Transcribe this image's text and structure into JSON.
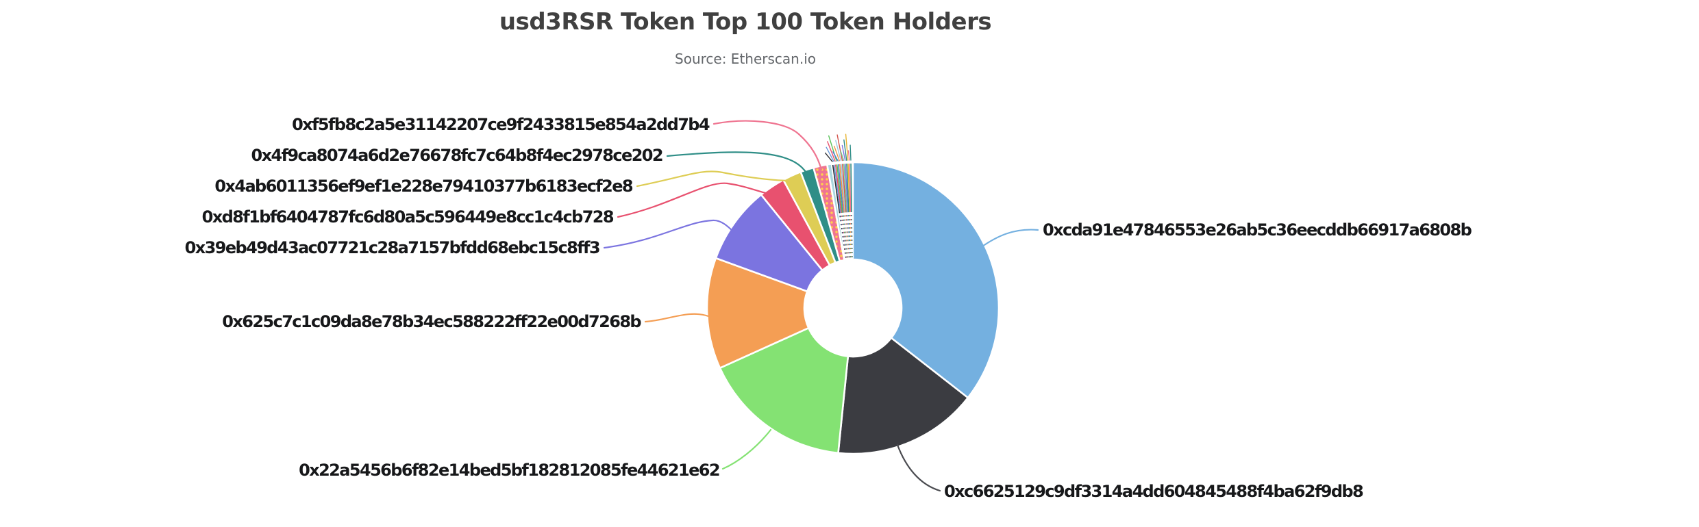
{
  "title": "usd3RSR Token Top 100 Token Holders",
  "subtitle": "Source: Etherscan.io",
  "chart_data": {
    "type": "pie",
    "donut": true,
    "title": "usd3RSR Token Top 100 Token Holders",
    "source": "Etherscan.io",
    "legend_position": "none",
    "unit": "percent share of top-100 token holdings",
    "start_angle_deg": 0,
    "direction": "clockwise",
    "series": [
      {
        "address": "0xcda91e47846553e26ab5c36eecddb66917a6808b",
        "share_pct": 35.6,
        "deg": 128.0,
        "color": "#74b0e0"
      },
      {
        "address": "0xc6625129c9df3314a4dd604845488f4ba62f9db8",
        "share_pct": 16.1,
        "deg": 57.8,
        "color": "#3b3c41"
      },
      {
        "address": "0x22a5456b6f82e14bed5bf182812085fe44621e62",
        "share_pct": 16.6,
        "deg": 59.9,
        "color": "#84e273"
      },
      {
        "address": "0x625c7c1c09da8e78b34ec588222ff22e00d7268b",
        "share_pct": 12.3,
        "deg": 44.3,
        "color": "#f49e54"
      },
      {
        "address": "0x39eb49d43ac07721c28a7157bfdd68ebc15c8ff3",
        "share_pct": 8.6,
        "deg": 31.0,
        "color": "#7b74e0"
      },
      {
        "address": "0xd8f1bf6404787fc6d80a5c596449e8cc1c4cb728",
        "share_pct": 2.9,
        "deg": 10.5,
        "color": "#e8516f"
      },
      {
        "address": "0x4ab6011356ef9ef1e228e79410377b6183ecf2e8",
        "share_pct": 2.1,
        "deg": 7.5,
        "color": "#decd55"
      },
      {
        "address": "0x4f9ca8074a6d2e76678fc7c64b8f4ec2978ce202",
        "share_pct": 1.5,
        "deg": 5.3,
        "color": "#2f8e87"
      },
      {
        "address": "0xf5fb8c2a5e31142207ce9f2433815e854a2dd7b4",
        "share_pct": 1.5,
        "deg": 5.5,
        "color": "#ef7591",
        "pattern": "yellow-dots"
      },
      {
        "address": null,
        "share_pct": 0.5,
        "deg": 1.8,
        "color": "#a9d6de",
        "unlabeled": true
      }
    ],
    "tail": {
      "note": "remaining top-100 holders rendered as unlabeled hairline slivers",
      "count": 14,
      "total_share_pct": 2.3,
      "colors": [
        "#2e2e33",
        "#6a9ad9",
        "#e8506e",
        "#58c157",
        "#4a7fd4",
        "#f09646",
        "#9ecae1",
        "#d4564e",
        "#76c893",
        "#7b74e0",
        "#2b8c85",
        "#e8b432",
        "#ef7591",
        "#2f8e87"
      ]
    }
  }
}
